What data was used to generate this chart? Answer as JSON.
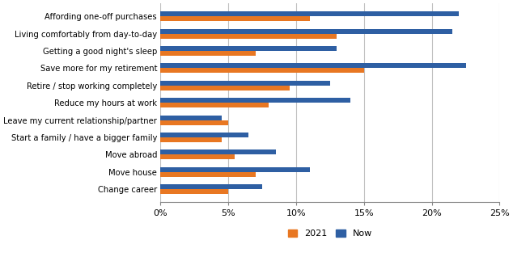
{
  "categories": [
    "Affording one-off purchases",
    "Living comfortably from day-to-day",
    "Getting a good night's sleep",
    "Save more for my retirement",
    "Retire / stop working completely",
    "Reduce my hours at work",
    "Leave my current relationship/partner",
    "Start a family / have a bigger family",
    "Move abroad",
    "Move house",
    "Change career"
  ],
  "values_2021": [
    11,
    13,
    7,
    15,
    9.5,
    8,
    5,
    4.5,
    5.5,
    7,
    5
  ],
  "values_now": [
    22,
    21.5,
    13,
    22.5,
    12.5,
    14,
    4.5,
    6.5,
    8.5,
    11,
    7.5
  ],
  "color_2021": "#E87722",
  "color_now": "#2E5FA3",
  "xlim": [
    0,
    25
  ],
  "xticks": [
    0,
    5,
    10,
    15,
    20,
    25
  ],
  "xticklabels": [
    "0%",
    "5%",
    "10%",
    "15%",
    "20%",
    "25%"
  ],
  "legend_2021": "2021",
  "legend_now": "Now",
  "bar_height": 0.28,
  "background_color": "#ffffff",
  "grid_color": "#c0c0c0"
}
